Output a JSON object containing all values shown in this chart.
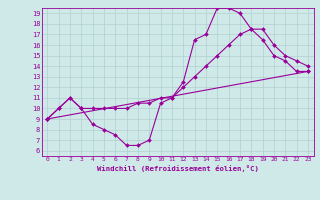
{
  "xlabel": "Windchill (Refroidissement éolien,°C)",
  "bg_color": "#cfe8e8",
  "line_color": "#990099",
  "grid_color": "#b0d0d0",
  "xlim": [
    -0.5,
    23.5
  ],
  "ylim": [
    5.5,
    19.5
  ],
  "xticks": [
    0,
    1,
    2,
    3,
    4,
    5,
    6,
    7,
    8,
    9,
    10,
    11,
    12,
    13,
    14,
    15,
    16,
    17,
    18,
    19,
    20,
    21,
    22,
    23
  ],
  "yticks": [
    6,
    7,
    8,
    9,
    10,
    11,
    12,
    13,
    14,
    15,
    16,
    17,
    18,
    19
  ],
  "curve1_x": [
    0,
    1,
    2,
    3,
    4,
    5,
    6,
    7,
    8,
    9,
    10,
    11,
    12,
    13,
    14,
    15,
    16,
    17,
    18,
    19,
    20,
    21,
    22,
    23
  ],
  "curve1_y": [
    9.0,
    10.0,
    11.0,
    10.0,
    8.5,
    8.0,
    7.5,
    6.5,
    6.5,
    7.0,
    10.5,
    11.0,
    12.5,
    16.5,
    17.0,
    19.5,
    19.5,
    19.0,
    17.5,
    16.5,
    15.0,
    14.5,
    13.5,
    13.5
  ],
  "curve2_x": [
    0,
    1,
    2,
    3,
    4,
    5,
    6,
    7,
    8,
    9,
    10,
    11,
    12,
    13,
    14,
    15,
    16,
    17,
    18,
    19,
    20,
    21,
    22,
    23
  ],
  "curve2_y": [
    9.0,
    10.0,
    11.0,
    10.0,
    10.0,
    10.0,
    10.0,
    10.0,
    10.5,
    10.5,
    11.0,
    11.0,
    12.0,
    13.0,
    14.0,
    15.0,
    16.0,
    17.0,
    17.5,
    17.5,
    16.0,
    15.0,
    14.5,
    14.0
  ],
  "curve3_x": [
    0,
    23
  ],
  "curve3_y": [
    9.0,
    13.5
  ]
}
